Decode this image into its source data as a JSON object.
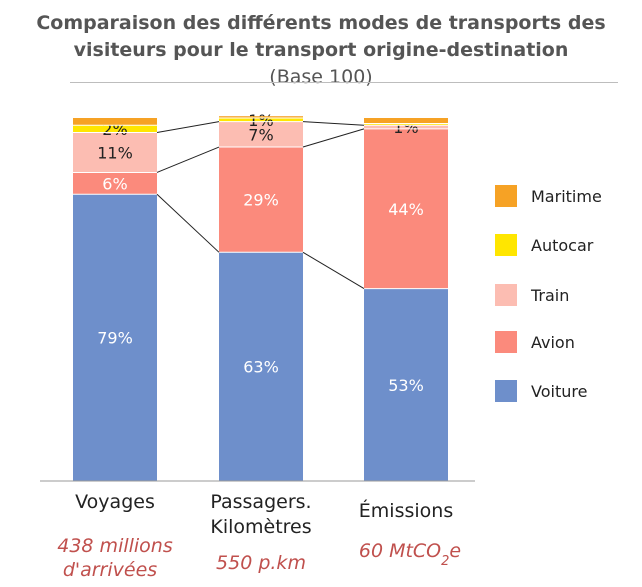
{
  "chart_data": {
    "type": "bar",
    "stacked": true,
    "title_main": "Comparaison des différents modes de transports des visiteurs pour le transport origine-destination",
    "title_suffix": "(Base 100)",
    "categories": [
      "Voyages",
      "Passagers. Kilomètres",
      "Émissions"
    ],
    "subtitles": [
      "438 millions d'arrivées",
      "550 p.km",
      "60 MtCO2e"
    ],
    "ylim": [
      0,
      100
    ],
    "legend_position": "right",
    "series": [
      {
        "name": "Voiture",
        "color": "#6e8fcb",
        "label_color": "#ffffff",
        "values": [
          79,
          63,
          53
        ],
        "labels": [
          "79%",
          "63%",
          "53%"
        ]
      },
      {
        "name": "Avion",
        "color": "#fb8a7c",
        "label_color": "#ffffff",
        "values": [
          6,
          29,
          44
        ],
        "labels": [
          "6%",
          "29%",
          "44%"
        ]
      },
      {
        "name": "Train",
        "color": "#fcbdb2",
        "label_color": "#222222",
        "values": [
          11,
          7,
          1
        ],
        "labels": [
          "11%",
          "7%",
          "1%"
        ]
      },
      {
        "name": "Autocar",
        "color": "#ffe600",
        "label_color": "#222222",
        "values": [
          2,
          1,
          0.5
        ],
        "labels": [
          "2%",
          "1%",
          ""
        ]
      },
      {
        "name": "Maritime",
        "color": "#f6a225",
        "label_color": "#222222",
        "values": [
          2,
          0.5,
          1.5
        ],
        "labels": [
          "",
          "",
          ""
        ]
      }
    ]
  }
}
